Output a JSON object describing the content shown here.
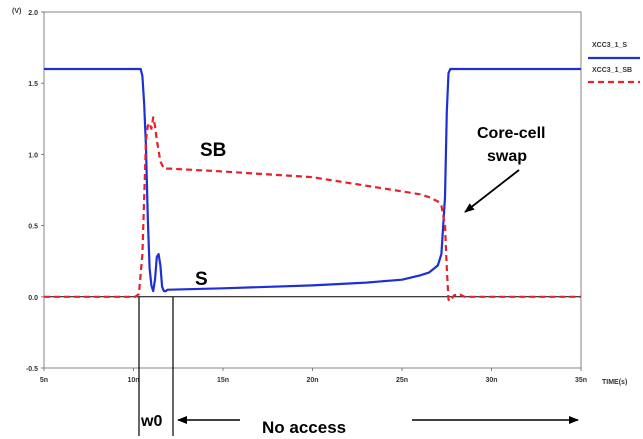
{
  "chart_data": {
    "type": "line",
    "title": "",
    "ylabel": "(V)",
    "xlabel": "TIME(s)",
    "xlim": [
      5,
      35
    ],
    "ylim": [
      -0.5,
      2.0
    ],
    "x_unit_suffix": "n",
    "xticks": [
      5,
      10,
      15,
      20,
      25,
      30,
      35
    ],
    "xtick_labels": [
      "5n",
      "10n",
      "15n",
      "20n",
      "25n",
      "30n",
      "35n"
    ],
    "yticks": [
      -0.5,
      0.0,
      0.5,
      1.0,
      1.5,
      2.0
    ],
    "ytick_labels": [
      "-0.5",
      "0.0",
      "0.5",
      "1.0",
      "1.5",
      "2.0"
    ],
    "grid": false,
    "legend_position": "right",
    "series": [
      {
        "name": "XCC3_1_S",
        "color": "#1f2fd6",
        "style": "solid",
        "x": [
          5.0,
          10.4,
          10.5,
          10.6,
          10.7,
          10.8,
          10.9,
          11.0,
          11.1,
          11.2,
          11.3,
          11.4,
          11.5,
          11.6,
          11.7,
          11.8,
          11.9,
          12.0,
          15.0,
          20.0,
          23.0,
          25.0,
          26.0,
          26.5,
          27.0,
          27.2,
          27.4,
          27.5,
          27.6,
          27.7,
          27.8,
          35.0
        ],
        "values": [
          1.6,
          1.6,
          1.55,
          1.35,
          1.05,
          0.55,
          0.2,
          0.08,
          0.04,
          0.12,
          0.28,
          0.3,
          0.22,
          0.07,
          0.04,
          0.04,
          0.05,
          0.05,
          0.06,
          0.08,
          0.1,
          0.12,
          0.15,
          0.17,
          0.22,
          0.3,
          0.7,
          1.3,
          1.57,
          1.6,
          1.6,
          1.6
        ]
      },
      {
        "name": "XCC3_1_SB",
        "color": "#e8202a",
        "style": "dashed",
        "x": [
          5.0,
          10.1,
          10.3,
          10.5,
          10.6,
          10.7,
          10.8,
          10.9,
          11.0,
          11.1,
          11.2,
          11.3,
          11.5,
          11.7,
          12.0,
          15.0,
          20.0,
          22.0,
          25.0,
          26.0,
          26.5,
          27.0,
          27.2,
          27.4,
          27.5,
          27.6,
          27.7,
          27.9,
          28.2,
          28.5,
          29.0,
          35.0
        ],
        "values": [
          0.0,
          0.0,
          0.02,
          0.3,
          0.7,
          1.1,
          1.2,
          1.22,
          1.18,
          1.26,
          1.2,
          1.1,
          0.95,
          0.9,
          0.9,
          0.88,
          0.84,
          0.8,
          0.74,
          0.72,
          0.7,
          0.67,
          0.64,
          0.5,
          0.2,
          -0.02,
          -0.03,
          0.01,
          0.02,
          0.0,
          0.0,
          0.0
        ]
      }
    ],
    "annotations": {
      "sb_label": "SB",
      "s_label": "S",
      "core_cell_line1": "Core-cell",
      "core_cell_line2": "swap",
      "w0_label": "w0",
      "no_access_label": "No access"
    }
  }
}
